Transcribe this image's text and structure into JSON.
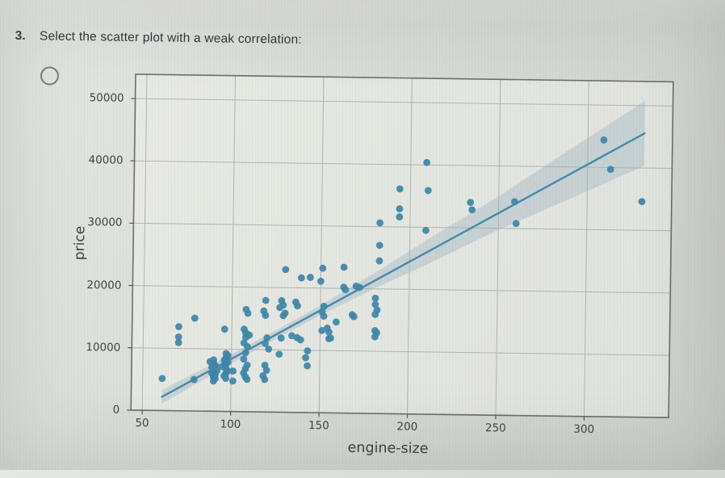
{
  "question": {
    "number": "3.",
    "text": "Select the scatter plot with a weak correlation:"
  },
  "answer_option": {
    "selected": false
  },
  "chart_data": {
    "type": "scatter",
    "title": "",
    "xlabel": "engine-size",
    "ylabel": "price",
    "xlim": [
      43.6,
      347.8
    ],
    "ylim": [
      0,
      53900
    ],
    "xticks": [
      50,
      100,
      150,
      200,
      250,
      300
    ],
    "xticklabels": [
      "50",
      "100",
      "150",
      "200",
      "250",
      "300"
    ],
    "yticks": [
      0,
      10000,
      20000,
      30000,
      40000,
      50000
    ],
    "yticklabels": [
      "0",
      "10000",
      "20000",
      "30000",
      "40000",
      "50000"
    ],
    "grid": true,
    "legend": "none",
    "colors": {
      "point": "#3e86a8",
      "line": "#4589ac",
      "band": "#9db3c3",
      "grid": "#b0b3ae",
      "spine": "#6b6e6a",
      "tick_text": "#3f4246"
    },
    "regression": {
      "x0": 61,
      "y0": 2200,
      "x1": 332,
      "y1": 45560
    },
    "ci_band": [
      [
        61,
        1100
      ],
      [
        100,
        750
      ],
      [
        130,
        700
      ],
      [
        150,
        800
      ],
      [
        183,
        1300
      ],
      [
        210,
        2000
      ],
      [
        250,
        2700
      ],
      [
        290,
        4000
      ],
      [
        332,
        5200
      ]
    ],
    "points": [
      [
        61,
        5150
      ],
      [
        70,
        13495
      ],
      [
        70,
        11845
      ],
      [
        70,
        10945
      ],
      [
        79,
        14900
      ],
      [
        79,
        5050
      ],
      [
        90,
        8250
      ],
      [
        88,
        7950
      ],
      [
        90,
        7650
      ],
      [
        91,
        7350
      ],
      [
        89,
        7050
      ],
      [
        90,
        6800
      ],
      [
        92,
        6550
      ],
      [
        90,
        6350
      ],
      [
        89,
        6150
      ],
      [
        91,
        5950
      ],
      [
        90,
        5750
      ],
      [
        90,
        5500
      ],
      [
        91,
        5250
      ],
      [
        90,
        4850
      ],
      [
        97,
        9300
      ],
      [
        98,
        8950
      ],
      [
        97,
        8600
      ],
      [
        96,
        8250
      ],
      [
        98,
        7900
      ],
      [
        97,
        7550
      ],
      [
        95,
        7200
      ],
      [
        97,
        6850
      ],
      [
        98,
        6500
      ],
      [
        97,
        6100
      ],
      [
        96,
        5700
      ],
      [
        97,
        5300
      ],
      [
        96,
        13200
      ],
      [
        101,
        6500
      ],
      [
        101,
        4900
      ],
      [
        108,
        16400
      ],
      [
        109,
        15800
      ],
      [
        107,
        13250
      ],
      [
        108,
        12650
      ],
      [
        110,
        12300
      ],
      [
        108,
        11950
      ],
      [
        107,
        11050
      ],
      [
        109,
        10450
      ],
      [
        108,
        9450
      ],
      [
        107,
        8450
      ],
      [
        109,
        7500
      ],
      [
        108,
        6900
      ],
      [
        107,
        6200
      ],
      [
        108,
        5600
      ],
      [
        109,
        5200
      ],
      [
        119,
        17900
      ],
      [
        118,
        16200
      ],
      [
        119,
        15500
      ],
      [
        120,
        11900
      ],
      [
        119,
        11000
      ],
      [
        121,
        10100
      ],
      [
        119,
        7500
      ],
      [
        120,
        6700
      ],
      [
        118,
        5800
      ],
      [
        119,
        5200
      ],
      [
        130,
        22900
      ],
      [
        128,
        17900
      ],
      [
        129,
        17200
      ],
      [
        127,
        16800
      ],
      [
        130,
        15900
      ],
      [
        129,
        15500
      ],
      [
        128,
        11900
      ],
      [
        127,
        9300
      ],
      [
        134,
        12300
      ],
      [
        136,
        17700
      ],
      [
        137,
        17100
      ],
      [
        139,
        21600
      ],
      [
        137,
        12000
      ],
      [
        139,
        11650
      ],
      [
        144,
        21700
      ],
      [
        143,
        9900
      ],
      [
        142,
        8800
      ],
      [
        143,
        7500
      ],
      [
        151,
        23200
      ],
      [
        150,
        21100
      ],
      [
        152,
        17100
      ],
      [
        151,
        16200
      ],
      [
        152,
        15500
      ],
      [
        151,
        13200
      ],
      [
        154,
        13600
      ],
      [
        155,
        12950
      ],
      [
        156,
        12000
      ],
      [
        155,
        11900
      ],
      [
        159,
        14600
      ],
      [
        163,
        23400
      ],
      [
        163,
        20200
      ],
      [
        164,
        19800
      ],
      [
        170,
        20400
      ],
      [
        172,
        20200
      ],
      [
        168,
        15800
      ],
      [
        169,
        15500
      ],
      [
        181,
        18500
      ],
      [
        181,
        17500
      ],
      [
        182,
        16600
      ],
      [
        181,
        15900
      ],
      [
        181,
        13300
      ],
      [
        182,
        12950
      ],
      [
        181,
        12300
      ],
      [
        183,
        30600
      ],
      [
        183,
        27000
      ],
      [
        183,
        24500
      ],
      [
        194,
        36100
      ],
      [
        194,
        32900
      ],
      [
        194,
        31600
      ],
      [
        209,
        40400
      ],
      [
        210,
        35900
      ],
      [
        209,
        29500
      ],
      [
        234,
        34100
      ],
      [
        235,
        32900
      ],
      [
        259,
        34300
      ],
      [
        260,
        30800
      ],
      [
        309,
        44400
      ],
      [
        313,
        39700
      ],
      [
        331,
        34600
      ]
    ]
  }
}
